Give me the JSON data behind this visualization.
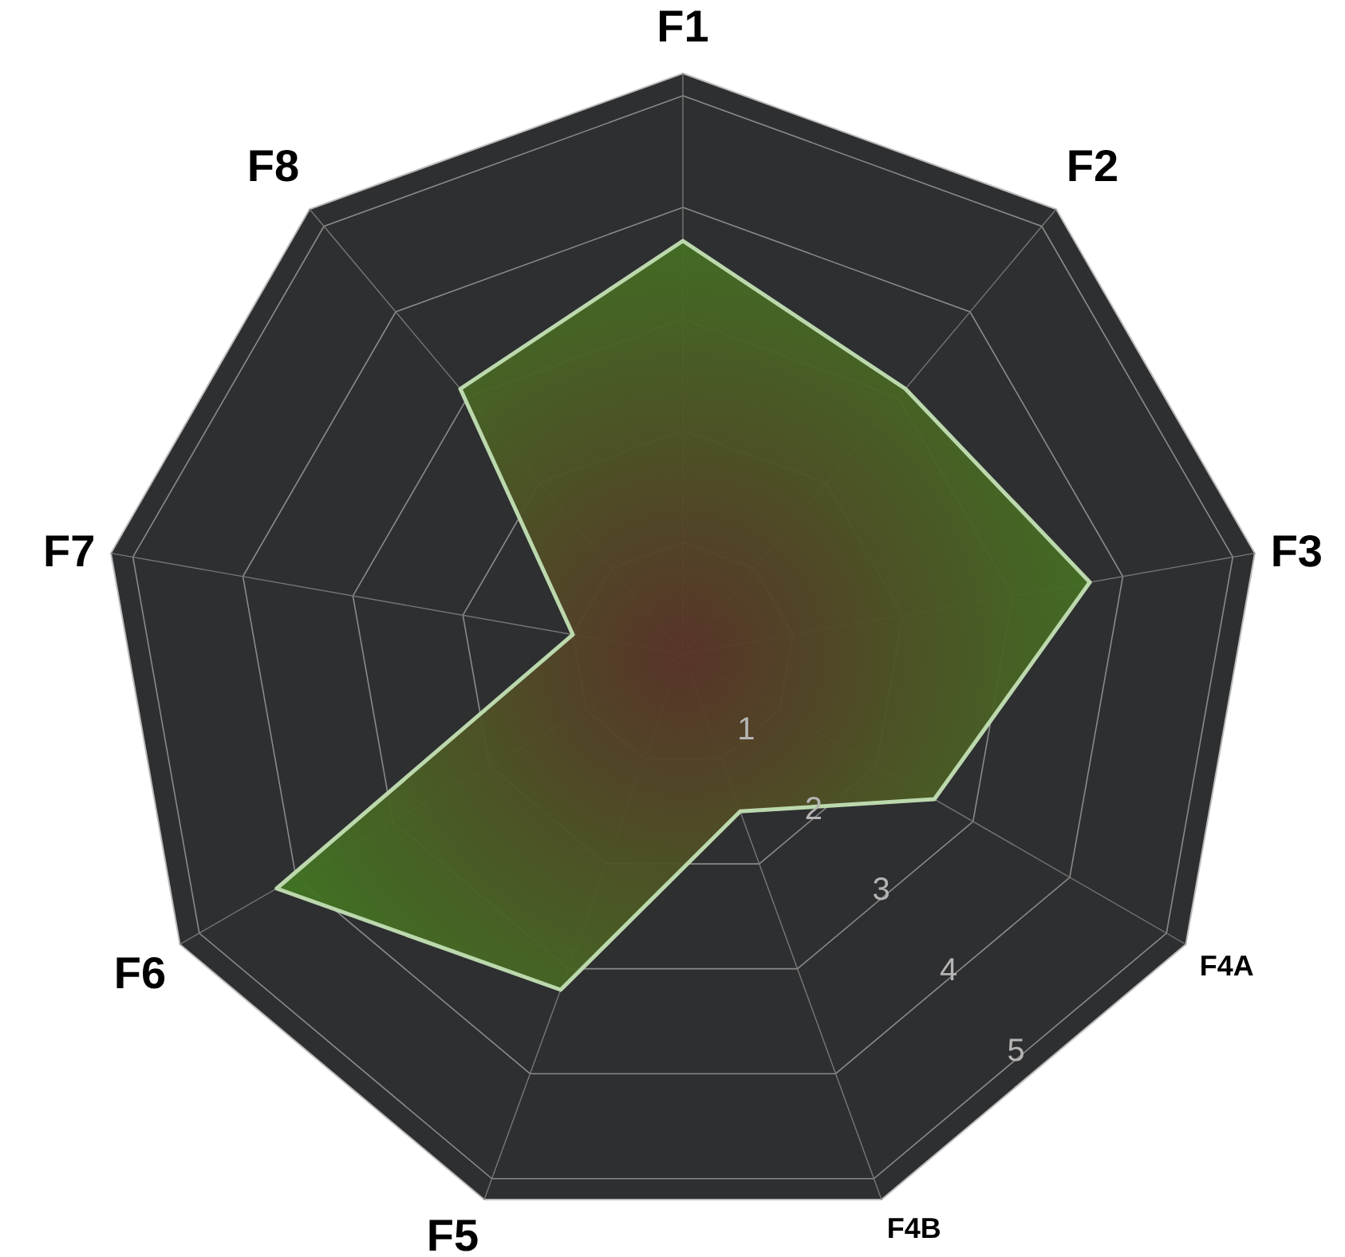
{
  "chart_data": {
    "type": "radar",
    "categories": [
      "F1",
      "F2",
      "F3",
      "F4A",
      "F4B",
      "F5",
      "F6",
      "F7",
      "F8"
    ],
    "series": [
      {
        "color": "#bcd8ad",
        "values": [
          3.7,
          3.1,
          3.7,
          2.6,
          1.5,
          3.2,
          4.2,
          1.0,
          3.1
        ]
      }
    ],
    "ylim": [
      0,
      5.2
    ],
    "yticks": [
      1,
      2,
      3,
      4,
      5
    ],
    "grid": true
  }
}
